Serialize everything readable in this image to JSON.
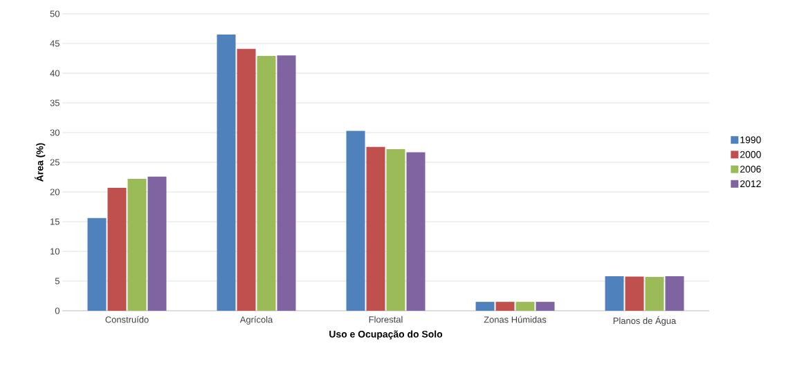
{
  "chart_data": {
    "type": "bar",
    "xlabel": "Uso e Ocupação do Solo",
    "ylabel": "Área (%)",
    "categories": [
      "Construído",
      "Agrícola",
      "Florestal",
      "Zonas Húmidas",
      "Planos de Água"
    ],
    "series": [
      {
        "name": "1990",
        "color": "#4f81bd",
        "values": [
          15.6,
          46.5,
          30.3,
          1.5,
          5.8
        ]
      },
      {
        "name": "2000",
        "color": "#c0504d",
        "values": [
          20.7,
          44.1,
          27.6,
          1.5,
          5.75
        ]
      },
      {
        "name": "2006",
        "color": "#9bbb59",
        "values": [
          22.2,
          42.9,
          27.2,
          1.5,
          5.7
        ]
      },
      {
        "name": "2012",
        "color": "#8064a2",
        "values": [
          22.6,
          43.0,
          26.7,
          1.5,
          5.8
        ]
      }
    ],
    "ylim": [
      0,
      50
    ],
    "yticks": [
      0,
      5,
      10,
      15,
      20,
      25,
      30,
      35,
      40,
      45,
      50
    ],
    "grid": "y",
    "legend": "right"
  }
}
